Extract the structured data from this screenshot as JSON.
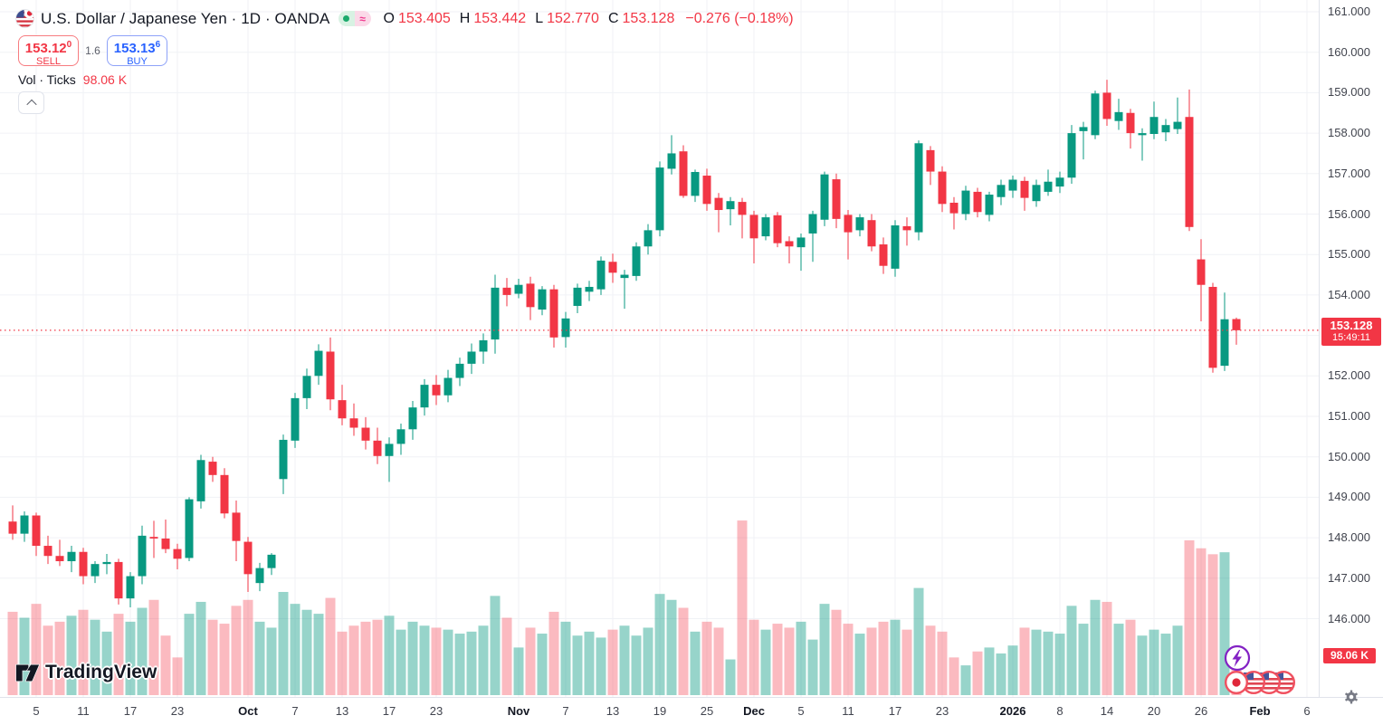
{
  "colors": {
    "up": "#089981",
    "down": "#f23645",
    "vol_up": "rgba(8,153,129,0.42)",
    "vol_down": "rgba(242,54,69,0.34)",
    "grid": "#f0f2f6",
    "axis_text": "#41444e",
    "title_text": "#131722",
    "buy_accent": "#2962ff",
    "price_label_bg": "#f23645",
    "dotted_line": "#f23645"
  },
  "header": {
    "title": "U.S. Dollar / Japanese Yen · 1D · OANDA",
    "market_open_icon": "market-open-dot",
    "delayed_icon": "≈",
    "ohlc": [
      {
        "k": "O",
        "v": "153.405"
      },
      {
        "k": "H",
        "v": "153.442"
      },
      {
        "k": "L",
        "v": "152.770"
      },
      {
        "k": "C",
        "v": "153.128"
      }
    ],
    "change": "−0.276 (−0.18%)"
  },
  "trade": {
    "sell_price": "153.12",
    "sell_sup": "0",
    "sell_label": "SELL",
    "spread": "1.6",
    "buy_price": "153.13",
    "buy_sup": "6",
    "buy_label": "BUY"
  },
  "volume_row": {
    "label": "Vol · Ticks",
    "value": "98.06 K"
  },
  "price_axis": {
    "ticks": [
      161,
      160,
      159,
      158,
      157,
      156,
      155,
      154,
      153,
      152,
      151,
      150,
      149,
      148,
      147,
      146
    ],
    "decimals": 3,
    "last_price": "153.128",
    "countdown": "15:49:11",
    "volume_value": "98.06 K"
  },
  "time_axis": {
    "ticks": [
      {
        "t": "5",
        "i": 2
      },
      {
        "t": "11",
        "i": 6
      },
      {
        "t": "17",
        "i": 10
      },
      {
        "t": "23",
        "i": 14
      },
      {
        "t": "Oct",
        "i": 20,
        "major": true
      },
      {
        "t": "7",
        "i": 24
      },
      {
        "t": "13",
        "i": 28
      },
      {
        "t": "17",
        "i": 32
      },
      {
        "t": "23",
        "i": 36
      },
      {
        "t": "Nov",
        "i": 43,
        "major": true
      },
      {
        "t": "7",
        "i": 47
      },
      {
        "t": "13",
        "i": 51
      },
      {
        "t": "19",
        "i": 55
      },
      {
        "t": "25",
        "i": 59
      },
      {
        "t": "Dec",
        "i": 63,
        "major": true
      },
      {
        "t": "5",
        "i": 67
      },
      {
        "t": "11",
        "i": 71
      },
      {
        "t": "17",
        "i": 75
      },
      {
        "t": "23",
        "i": 79
      },
      {
        "t": "2026",
        "i": 85,
        "major": true
      },
      {
        "t": "8",
        "i": 89
      },
      {
        "t": "14",
        "i": 93
      },
      {
        "t": "20",
        "i": 97
      },
      {
        "t": "26",
        "i": 101
      },
      {
        "t": "Feb",
        "i": 106,
        "major": true
      },
      {
        "t": "6",
        "i": 110
      }
    ]
  },
  "logo": {
    "text": "TradingView"
  },
  "chart_data": {
    "type": "candlestick",
    "symbol": "USD/JPY",
    "exchange": "OANDA",
    "timeframe": "1D",
    "title": "U.S. Dollar / Japanese Yen",
    "ylim": [
      146,
      161
    ],
    "grid": true,
    "volume_unit": "K ticks",
    "current_price": 153.128,
    "current_volume": 98.06,
    "columns": [
      "date",
      "open",
      "high",
      "low",
      "close",
      "volume_k"
    ],
    "candles": [
      [
        "2025-09-03",
        148.4,
        148.8,
        147.95,
        148.1,
        210
      ],
      [
        "2025-09-04",
        148.1,
        148.65,
        147.9,
        148.55,
        195
      ],
      [
        "2025-09-05",
        148.55,
        148.62,
        147.55,
        147.8,
        230
      ],
      [
        "2025-09-08",
        147.8,
        148.05,
        147.35,
        147.55,
        175
      ],
      [
        "2025-09-09",
        147.55,
        147.95,
        147.3,
        147.42,
        185
      ],
      [
        "2025-09-10",
        147.42,
        147.8,
        147.15,
        147.65,
        200
      ],
      [
        "2025-09-11",
        147.65,
        147.75,
        146.85,
        147.05,
        215
      ],
      [
        "2025-09-12",
        147.05,
        147.42,
        146.88,
        147.35,
        190
      ],
      [
        "2025-09-15",
        147.35,
        147.6,
        147.1,
        147.4,
        160
      ],
      [
        "2025-09-16",
        147.4,
        147.48,
        146.35,
        146.5,
        205
      ],
      [
        "2025-09-17",
        146.5,
        147.15,
        146.28,
        147.05,
        185
      ],
      [
        "2025-09-18",
        147.05,
        148.3,
        146.85,
        148.05,
        220
      ],
      [
        "2025-09-19",
        148.02,
        148.42,
        147.5,
        147.98,
        240
      ],
      [
        "2025-09-22",
        147.98,
        148.45,
        147.62,
        147.72,
        150
      ],
      [
        "2025-09-23",
        147.72,
        147.85,
        147.22,
        147.48,
        95
      ],
      [
        "2025-09-24",
        147.5,
        149.0,
        147.42,
        148.95,
        205
      ],
      [
        "2025-09-25",
        148.9,
        150.05,
        148.72,
        149.92,
        235
      ],
      [
        "2025-09-26",
        149.88,
        150.0,
        149.38,
        149.55,
        190
      ],
      [
        "2025-09-29",
        149.55,
        149.72,
        148.48,
        148.6,
        180
      ],
      [
        "2025-09-30",
        148.62,
        148.92,
        147.42,
        147.92,
        225
      ],
      [
        "2025-10-01",
        147.9,
        148.02,
        146.66,
        147.1,
        240
      ],
      [
        "2025-10-02",
        146.88,
        147.38,
        146.68,
        147.25,
        185
      ],
      [
        "2025-10-03",
        147.25,
        147.62,
        147.08,
        147.58,
        170
      ],
      [
        "2025-10-06",
        149.45,
        150.55,
        149.08,
        150.42,
        260
      ],
      [
        "2025-10-07",
        150.4,
        151.58,
        150.22,
        151.45,
        230
      ],
      [
        "2025-10-08",
        151.45,
        152.18,
        151.18,
        152.0,
        215
      ],
      [
        "2025-10-09",
        152.0,
        152.78,
        151.78,
        152.62,
        205
      ],
      [
        "2025-10-10",
        152.6,
        152.95,
        151.15,
        151.42,
        245
      ],
      [
        "2025-10-13",
        151.4,
        151.78,
        150.78,
        150.95,
        160
      ],
      [
        "2025-10-14",
        150.95,
        151.32,
        150.52,
        150.72,
        175
      ],
      [
        "2025-10-15",
        150.72,
        150.98,
        150.18,
        150.4,
        185
      ],
      [
        "2025-10-16",
        150.4,
        150.72,
        149.82,
        150.02,
        190
      ],
      [
        "2025-10-17",
        150.02,
        150.48,
        149.38,
        150.32,
        200
      ],
      [
        "2025-10-20",
        150.32,
        150.82,
        150.05,
        150.68,
        165
      ],
      [
        "2025-10-21",
        150.68,
        151.38,
        150.42,
        151.22,
        185
      ],
      [
        "2025-10-22",
        151.22,
        151.92,
        151.02,
        151.78,
        175
      ],
      [
        "2025-10-23",
        151.78,
        152.02,
        151.28,
        151.52,
        170
      ],
      [
        "2025-10-24",
        151.52,
        152.15,
        151.35,
        151.95,
        165
      ],
      [
        "2025-10-27",
        151.95,
        152.45,
        151.75,
        152.3,
        155
      ],
      [
        "2025-10-28",
        152.3,
        152.8,
        152.05,
        152.6,
        160
      ],
      [
        "2025-10-29",
        152.6,
        153.05,
        152.3,
        152.88,
        175
      ],
      [
        "2025-10-30",
        152.9,
        154.5,
        152.55,
        154.18,
        250
      ],
      [
        "2025-10-31",
        154.18,
        154.42,
        153.72,
        154.0,
        195
      ],
      [
        "2025-11-03",
        154.03,
        154.4,
        153.92,
        154.25,
        120
      ],
      [
        "2025-11-04",
        154.28,
        154.45,
        153.38,
        153.7,
        170
      ],
      [
        "2025-11-05",
        153.64,
        154.22,
        153.5,
        154.14,
        155
      ],
      [
        "2025-11-06",
        154.14,
        154.25,
        152.7,
        152.95,
        210
      ],
      [
        "2025-11-07",
        152.96,
        153.58,
        152.7,
        153.42,
        185
      ],
      [
        "2025-11-10",
        153.73,
        154.28,
        153.55,
        154.18,
        150
      ],
      [
        "2025-11-11",
        154.08,
        154.35,
        153.85,
        154.2,
        160
      ],
      [
        "2025-11-12",
        154.14,
        154.95,
        154.0,
        154.85,
        145
      ],
      [
        "2025-11-13",
        154.82,
        155.02,
        154.3,
        154.55,
        165
      ],
      [
        "2025-11-14",
        154.42,
        154.62,
        153.66,
        154.5,
        175
      ],
      [
        "2025-11-17",
        154.47,
        155.3,
        154.35,
        155.2,
        150
      ],
      [
        "2025-11-18",
        155.2,
        155.75,
        155.0,
        155.6,
        170
      ],
      [
        "2025-11-19",
        155.6,
        157.3,
        155.45,
        157.15,
        255
      ],
      [
        "2025-11-20",
        157.12,
        157.95,
        156.98,
        157.5,
        240
      ],
      [
        "2025-11-21",
        157.55,
        157.7,
        156.4,
        156.45,
        220
      ],
      [
        "2025-11-24",
        156.45,
        157.1,
        156.3,
        157.04,
        160
      ],
      [
        "2025-11-25",
        156.95,
        157.12,
        156.08,
        156.25,
        185
      ],
      [
        "2025-11-26",
        156.4,
        156.52,
        155.55,
        156.1,
        170
      ],
      [
        "2025-11-27",
        156.12,
        156.42,
        155.72,
        156.32,
        90
      ],
      [
        "2025-11-28",
        156.3,
        156.4,
        155.4,
        155.98,
        440
      ],
      [
        "2025-12-01",
        155.98,
        156.08,
        154.78,
        155.4,
        190
      ],
      [
        "2025-12-02",
        155.45,
        156.0,
        155.35,
        155.92,
        165
      ],
      [
        "2025-12-03",
        155.97,
        156.05,
        155.18,
        155.28,
        180
      ],
      [
        "2025-12-04",
        155.33,
        155.45,
        154.78,
        155.2,
        170
      ],
      [
        "2025-12-05",
        155.18,
        155.52,
        154.6,
        155.42,
        185
      ],
      [
        "2025-12-08",
        155.52,
        156.08,
        154.82,
        156.0,
        140
      ],
      [
        "2025-12-09",
        155.86,
        157.05,
        155.7,
        156.98,
        230
      ],
      [
        "2025-12-10",
        156.86,
        157.0,
        155.65,
        155.88,
        215
      ],
      [
        "2025-12-11",
        155.98,
        156.1,
        154.88,
        155.55,
        180
      ],
      [
        "2025-12-12",
        155.6,
        156.0,
        155.45,
        155.92,
        155
      ],
      [
        "2025-12-15",
        155.85,
        156.0,
        155.08,
        155.2,
        170
      ],
      [
        "2025-12-16",
        155.25,
        155.42,
        154.52,
        154.72,
        185
      ],
      [
        "2025-12-17",
        154.65,
        155.85,
        154.45,
        155.72,
        190
      ],
      [
        "2025-12-18",
        155.7,
        155.92,
        155.22,
        155.6,
        165
      ],
      [
        "2025-12-19",
        155.55,
        157.82,
        155.35,
        157.75,
        270
      ],
      [
        "2025-12-22",
        157.58,
        157.68,
        156.72,
        157.05,
        175
      ],
      [
        "2025-12-23",
        157.05,
        157.18,
        156.05,
        156.25,
        160
      ],
      [
        "2025-12-24",
        156.28,
        156.42,
        155.62,
        156.02,
        95
      ],
      [
        "2025-12-26",
        156.0,
        156.7,
        155.85,
        156.58,
        75
      ],
      [
        "2025-12-29",
        156.55,
        156.65,
        155.92,
        156.05,
        110
      ],
      [
        "2025-12-30",
        155.98,
        156.55,
        155.82,
        156.48,
        120
      ],
      [
        "2025-12-31",
        156.42,
        156.85,
        156.22,
        156.72,
        105
      ],
      [
        "2026-01-02",
        156.58,
        156.95,
        156.4,
        156.85,
        125
      ],
      [
        "2026-01-05",
        156.82,
        156.92,
        156.08,
        156.4,
        170
      ],
      [
        "2026-01-06",
        156.32,
        156.85,
        156.18,
        156.72,
        165
      ],
      [
        "2026-01-07",
        156.55,
        157.1,
        156.45,
        156.8,
        160
      ],
      [
        "2026-01-08",
        156.68,
        157.05,
        156.52,
        156.9,
        155
      ],
      [
        "2026-01-09",
        156.9,
        158.2,
        156.75,
        158.0,
        225
      ],
      [
        "2026-01-12",
        158.05,
        158.28,
        157.35,
        158.15,
        180
      ],
      [
        "2026-01-13",
        157.95,
        159.05,
        157.85,
        158.98,
        240
      ],
      [
        "2026-01-14",
        159.0,
        159.32,
        158.18,
        158.35,
        235
      ],
      [
        "2026-01-15",
        158.3,
        158.85,
        158.08,
        158.52,
        180
      ],
      [
        "2026-01-16",
        158.5,
        158.6,
        157.62,
        158.0,
        190
      ],
      [
        "2026-01-19",
        157.95,
        158.12,
        157.32,
        158.0,
        150
      ],
      [
        "2026-01-20",
        157.98,
        158.78,
        157.85,
        158.4,
        165
      ],
      [
        "2026-01-21",
        158.02,
        158.35,
        157.8,
        158.2,
        155
      ],
      [
        "2026-01-22",
        158.1,
        158.88,
        157.98,
        158.28,
        175
      ],
      [
        "2026-01-23",
        158.4,
        159.08,
        155.58,
        155.68,
        390
      ],
      [
        "2026-01-26",
        154.88,
        155.38,
        153.35,
        154.25,
        370
      ],
      [
        "2026-01-27",
        154.2,
        154.3,
        152.08,
        152.2,
        355
      ],
      [
        "2026-01-28",
        152.25,
        154.06,
        152.12,
        153.4,
        360
      ],
      [
        "2026-01-29",
        153.405,
        153.442,
        152.77,
        153.128,
        98.06
      ]
    ]
  }
}
